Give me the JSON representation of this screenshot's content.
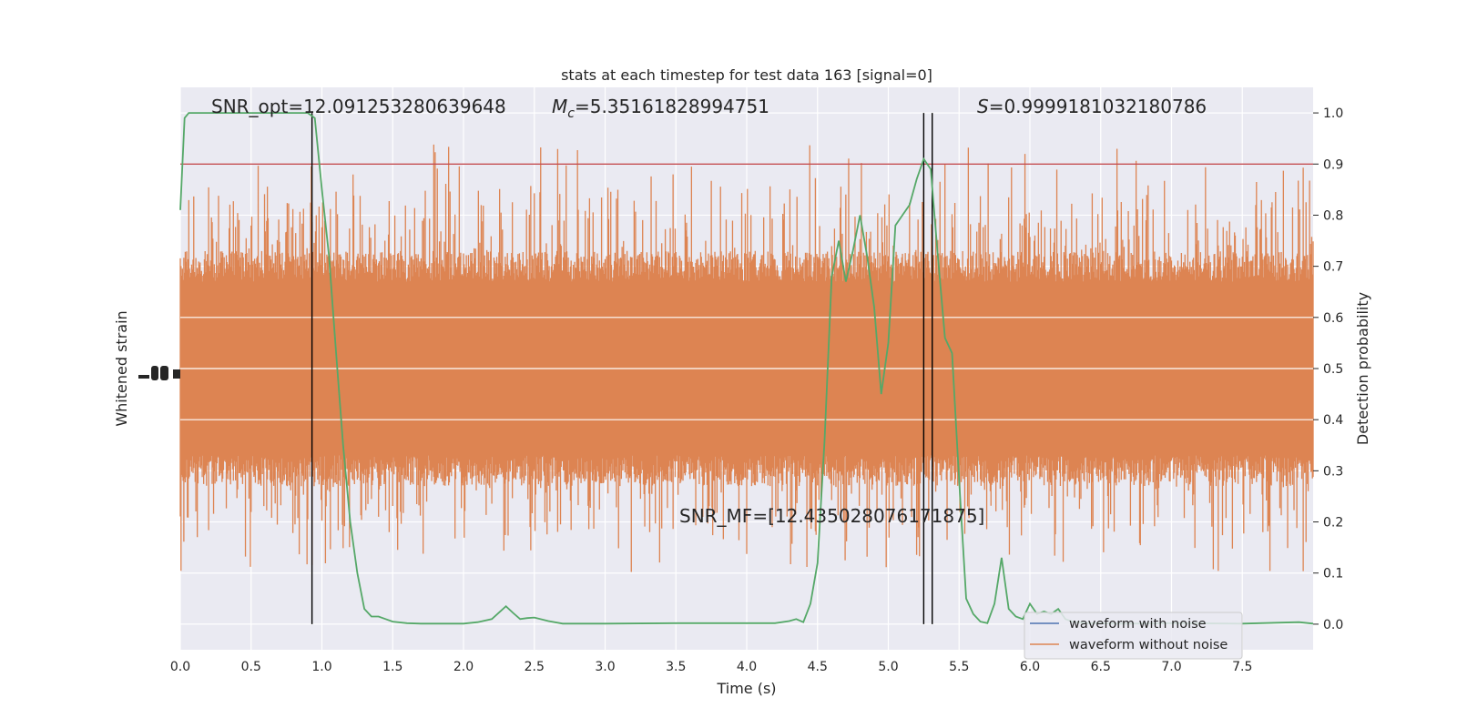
{
  "chart_data": {
    "type": "line",
    "title": "stats at each timestep for test data 163 [signal=0]",
    "xlabel": "Time (s)",
    "ylabel_left": "Whitened strain",
    "ylabel_right": "Detection probability",
    "xlim": [
      0,
      8.0
    ],
    "ylim_right": [
      -0.05,
      1.05
    ],
    "x_ticks": [
      0.0,
      0.5,
      1.0,
      1.5,
      2.0,
      2.5,
      3.0,
      3.5,
      4.0,
      4.5,
      5.0,
      5.5,
      6.0,
      6.5,
      7.0,
      7.5
    ],
    "x_tick_labels": [
      "0.0",
      "0.5",
      "1.0",
      "1.5",
      "2.0",
      "2.5",
      "3.0",
      "3.5",
      "4.0",
      "4.5",
      "5.0",
      "5.5",
      "6.0",
      "6.5",
      "7.0",
      "7.5"
    ],
    "y_right_ticks": [
      0.0,
      0.1,
      0.2,
      0.3,
      0.4,
      0.5,
      0.6,
      0.7,
      0.8,
      0.9,
      1.0
    ],
    "y_right_tick_labels": [
      "0.0",
      "0.1",
      "0.2",
      "0.3",
      "0.4",
      "0.5",
      "0.6",
      "0.7",
      "0.8",
      "0.9",
      "1.0"
    ],
    "grid": true,
    "legend": {
      "placement": "lower-right",
      "entries": [
        {
          "label": "waveform with noise",
          "color": "#4c72b0"
        },
        {
          "label": "waveform without noise",
          "color": "#dd8452"
        }
      ]
    },
    "annotations": {
      "snr_opt": "SNR_opt=12.091253280639648",
      "mc_symbol": "M",
      "mc_sub": "c",
      "mc_value": "=5.35161828994751",
      "s_symbol": "S",
      "s_value": "=0.9999181032180786",
      "snr_mf": "SNR_MF=[12.435028076171875]"
    },
    "threshold": {
      "y": 0.9,
      "color": "#c44e52"
    },
    "vertical_lines_x": [
      0.93,
      5.25,
      5.31
    ],
    "noise_band": {
      "color": "#dd8452",
      "center": 0.5,
      "typical_low": 0.3,
      "typical_high": 0.7,
      "peak_low": 0.05,
      "peak_high": 1.0
    },
    "series": [
      {
        "name": "Detection probability",
        "color": "#55a868",
        "x": [
          0.0,
          0.03,
          0.06,
          0.1,
          0.2,
          0.3,
          0.4,
          0.5,
          0.6,
          0.7,
          0.8,
          0.85,
          0.9,
          0.95,
          1.0,
          1.05,
          1.1,
          1.15,
          1.2,
          1.25,
          1.3,
          1.35,
          1.4,
          1.45,
          1.5,
          1.6,
          1.7,
          1.8,
          1.9,
          2.0,
          2.1,
          2.2,
          2.3,
          2.35,
          2.4,
          2.45,
          2.5,
          2.6,
          2.7,
          2.8,
          3.0,
          3.5,
          4.0,
          4.2,
          4.3,
          4.35,
          4.4,
          4.45,
          4.5,
          4.55,
          4.6,
          4.65,
          4.7,
          4.75,
          4.8,
          4.85,
          4.9,
          4.95,
          5.0,
          5.05,
          5.1,
          5.15,
          5.2,
          5.25,
          5.3,
          5.35,
          5.4,
          5.45,
          5.5,
          5.55,
          5.6,
          5.65,
          5.7,
          5.75,
          5.8,
          5.85,
          5.9,
          5.95,
          6.0,
          6.05,
          6.1,
          6.15,
          6.2,
          6.25,
          6.3,
          6.4,
          6.5,
          6.6,
          6.7,
          7.0,
          7.5,
          7.9,
          8.0
        ],
        "y": [
          0.81,
          0.99,
          1.0,
          1.0,
          1.0,
          1.0,
          1.0,
          1.0,
          1.0,
          1.0,
          1.0,
          1.0,
          1.0,
          0.99,
          0.85,
          0.72,
          0.53,
          0.35,
          0.2,
          0.1,
          0.03,
          0.015,
          0.015,
          0.01,
          0.005,
          0.002,
          0.001,
          0.001,
          0.001,
          0.001,
          0.004,
          0.01,
          0.035,
          0.022,
          0.01,
          0.012,
          0.013,
          0.006,
          0.001,
          0.001,
          0.001,
          0.002,
          0.002,
          0.002,
          0.006,
          0.01,
          0.004,
          0.04,
          0.12,
          0.36,
          0.68,
          0.75,
          0.67,
          0.73,
          0.8,
          0.72,
          0.62,
          0.45,
          0.55,
          0.78,
          0.8,
          0.82,
          0.87,
          0.91,
          0.89,
          0.72,
          0.56,
          0.53,
          0.28,
          0.05,
          0.02,
          0.005,
          0.002,
          0.04,
          0.13,
          0.03,
          0.015,
          0.01,
          0.04,
          0.02,
          0.025,
          0.02,
          0.03,
          0.01,
          0.005,
          0.002,
          0.002,
          0.001,
          0.001,
          0.002,
          0.001,
          0.004,
          0.001
        ]
      }
    ]
  }
}
